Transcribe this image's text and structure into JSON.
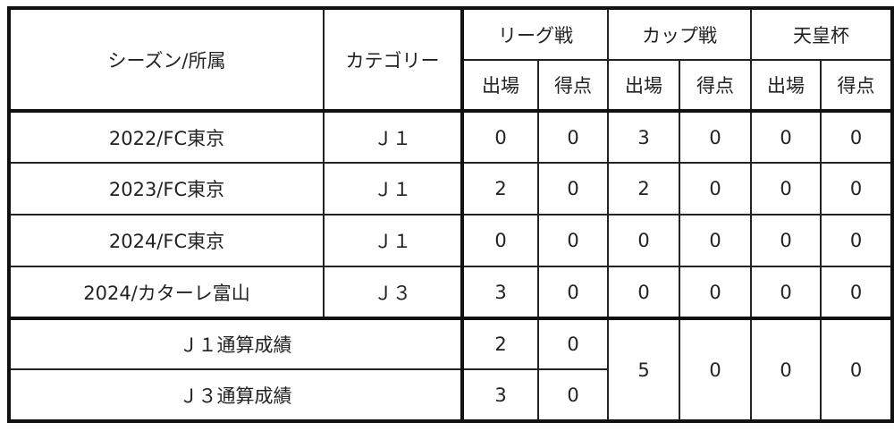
{
  "header": {
    "season": "シーズン/所属",
    "category": "カテゴリー",
    "league": "リーグ戦",
    "cup": "カップ戦",
    "emperor": "天皇杯",
    "apps": "出場",
    "goals": "得点"
  },
  "rows": [
    {
      "season": "2022/FC東京",
      "category": "Ｊ１",
      "values": [
        "0",
        "0",
        "3",
        "0",
        "0",
        "0"
      ]
    },
    {
      "season": "2023/FC東京",
      "category": "Ｊ１",
      "values": [
        "2",
        "0",
        "2",
        "0",
        "0",
        "0"
      ]
    },
    {
      "season": "2024/FC東京",
      "category": "Ｊ１",
      "values": [
        "0",
        "0",
        "0",
        "0",
        "0",
        "0"
      ]
    },
    {
      "season": "2024/カターレ富山",
      "category": "Ｊ３",
      "values": [
        "3",
        "0",
        "0",
        "0",
        "0",
        "0"
      ]
    }
  ],
  "totals": {
    "j1_label": "Ｊ１通算成績",
    "j1_league_apps": "2",
    "j1_league_goals": "0",
    "j3_label": "Ｊ３通算成績",
    "j3_league_apps": "3",
    "j3_league_goals": "0",
    "cup_apps": "5",
    "cup_goals": "0",
    "emperor_apps": "0",
    "emperor_goals": "0"
  }
}
